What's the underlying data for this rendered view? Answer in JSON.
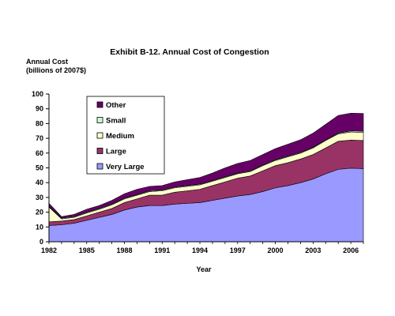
{
  "chart_data": {
    "type": "area",
    "stacked": true,
    "title": "Exhibit B-12.  Annual Cost of Congestion",
    "ylabel_line1": "Annual Cost",
    "ylabel_line2": "(billions of 2007$)",
    "xlabel": "Year",
    "ylim": [
      0,
      100
    ],
    "yticks": [
      0,
      10,
      20,
      30,
      40,
      50,
      60,
      70,
      80,
      90,
      100
    ],
    "xlim": [
      1982,
      2007
    ],
    "xticks": [
      1982,
      1985,
      1988,
      1991,
      1994,
      1997,
      2000,
      2003,
      2006
    ],
    "grid": false,
    "legend_position": "top-left",
    "x": [
      1982,
      1983,
      1984,
      1985,
      1986,
      1987,
      1988,
      1989,
      1990,
      1991,
      1992,
      1993,
      1994,
      1995,
      1996,
      1997,
      1998,
      1999,
      2000,
      2001,
      2002,
      2003,
      2004,
      2005,
      2006,
      2007
    ],
    "series": [
      {
        "name": "Very Large",
        "color": "#9999ff",
        "values": [
          11,
          11.5,
          12.5,
          14.5,
          16.5,
          18.5,
          21.5,
          23.5,
          24.5,
          24.5,
          25.5,
          26,
          26.5,
          28,
          29.5,
          31,
          32,
          34,
          36.5,
          38,
          40,
          42.5,
          46,
          49,
          49.8,
          49.5
        ]
      },
      {
        "name": "Large",
        "color": "#993366",
        "values": [
          2.5,
          2.5,
          2.5,
          3,
          3.5,
          4,
          5,
          5.5,
          7,
          7,
          8,
          8.5,
          9,
          10,
          11,
          12,
          12.5,
          14,
          15,
          15.5,
          16,
          16.5,
          17.5,
          19,
          19,
          19
        ]
      },
      {
        "name": "Medium",
        "color": "#ffffcc",
        "values": [
          10,
          1.5,
          1.5,
          2,
          2,
          2.5,
          2.5,
          2.5,
          2.5,
          3,
          3,
          3,
          3,
          3,
          3,
          3,
          3,
          3.5,
          3.5,
          4,
          4,
          4.5,
          5,
          5,
          5.5,
          5.5
        ]
      },
      {
        "name": "Small",
        "color": "#ccffcc",
        "values": [
          0.5,
          0.5,
          0.5,
          0.5,
          0.5,
          0.5,
          0.5,
          0.5,
          0.5,
          0.5,
          0.5,
          0.5,
          0.5,
          0.5,
          0.5,
          0.5,
          0.5,
          0.5,
          0.5,
          0.5,
          0.5,
          0.5,
          0.5,
          0.5,
          0.7,
          0.8
        ]
      },
      {
        "name": "Other",
        "color": "#660066",
        "values": [
          2,
          1,
          1.5,
          2,
          2,
          2.5,
          3,
          3.5,
          3,
          3,
          3.5,
          4,
          4.5,
          5,
          6,
          6.5,
          7,
          7,
          7.5,
          8,
          8.5,
          9.5,
          10.5,
          12,
          12,
          12
        ]
      }
    ]
  }
}
